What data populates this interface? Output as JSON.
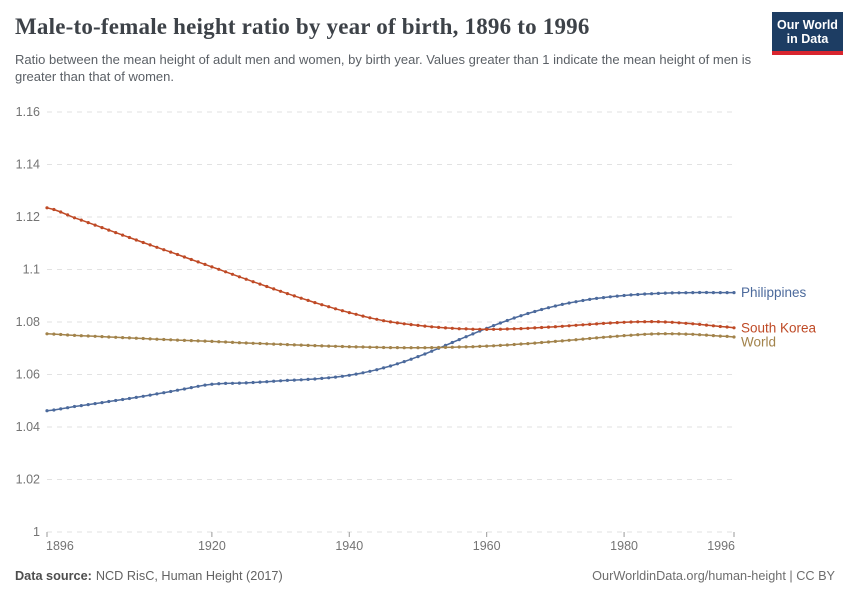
{
  "header": {
    "title": "Male-to-female height ratio by year of birth, 1896 to 1996",
    "subtitle": "Ratio between the mean height of adult men and women, by birth year. Values greater than 1 indicate the mean height of men is greater than that of women.",
    "logo": {
      "line1": "Our World",
      "line2": "in Data",
      "bg_color": "#1d3d63",
      "bar_color": "#d8252e"
    }
  },
  "footer": {
    "datasource_label": "Data source:",
    "datasource_value": "NCD RisC, Human Height (2017)",
    "credit": "OurWorldinData.org/human-height | CC BY"
  },
  "chart_data": {
    "type": "line",
    "title": "Male-to-female height ratio by year of birth, 1896 to 1996",
    "xlabel": "",
    "ylabel": "",
    "xlim": [
      1896,
      1996
    ],
    "ylim": [
      1,
      1.16
    ],
    "xticks": [
      1896,
      1920,
      1940,
      1960,
      1980,
      1996
    ],
    "yticks": [
      1,
      1.02,
      1.04,
      1.06,
      1.08,
      1.1,
      1.12,
      1.14,
      1.16
    ],
    "ytick_labels": [
      "1",
      "1.02",
      "1.04",
      "1.06",
      "1.08",
      "1.1",
      "1.12",
      "1.14",
      "1.16"
    ],
    "grid": "horizontal-dashed",
    "legend_position": "end-of-line-labels",
    "markers": "one-dot-per-year",
    "grid_color": "#e2e2e2",
    "axis_text_color": "#747474",
    "anchor_years": [
      1896,
      1900,
      1905,
      1910,
      1915,
      1920,
      1925,
      1930,
      1935,
      1940,
      1945,
      1950,
      1955,
      1960,
      1965,
      1970,
      1975,
      1980,
      1985,
      1990,
      1995,
      1996
    ],
    "series": [
      {
        "name": "Philippines",
        "color": "#4c6a9c",
        "values": [
          1.0462,
          1.0478,
          1.0497,
          1.0517,
          1.054,
          1.0563,
          1.0568,
          1.0576,
          1.0583,
          1.0597,
          1.0625,
          1.0668,
          1.0722,
          1.0776,
          1.0824,
          1.0861,
          1.0886,
          1.0901,
          1.0909,
          1.0912,
          1.0912,
          1.0912
        ]
      },
      {
        "name": "South Korea",
        "color": "#bf4a26",
        "values": [
          1.1235,
          1.1197,
          1.115,
          1.1103,
          1.1057,
          1.101,
          1.0963,
          1.0917,
          1.0874,
          1.0836,
          1.0805,
          1.0787,
          1.0776,
          1.0772,
          1.0775,
          1.0782,
          1.0791,
          1.0799,
          1.0801,
          1.0793,
          1.0781,
          1.0778
        ]
      },
      {
        "name": "World",
        "color": "#a2834b",
        "values": [
          1.0755,
          1.0749,
          1.0743,
          1.0737,
          1.0731,
          1.0726,
          1.072,
          1.0715,
          1.071,
          1.0706,
          1.0703,
          1.0702,
          1.0704,
          1.0708,
          1.0716,
          1.0726,
          1.0737,
          1.0748,
          1.0755,
          1.0753,
          1.0745,
          1.0743
        ]
      }
    ]
  }
}
